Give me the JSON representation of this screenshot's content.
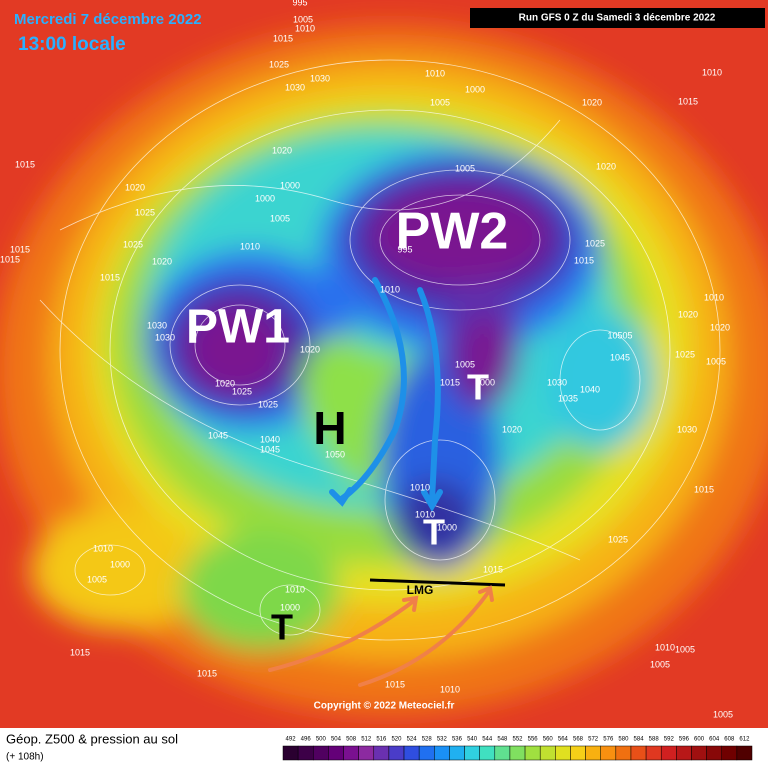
{
  "header": {
    "date": "Mercredi 7 décembre 2022",
    "time": "13:00 locale",
    "run": "Run GFS 0 Z du Samedi 3 décembre 2022"
  },
  "annotations": [
    "PW1",
    "PW2",
    "H",
    "T",
    "T",
    "T",
    "LMG"
  ],
  "isobar_labels": [
    "1015",
    "1020",
    "1025",
    "1025",
    "1015",
    "1015",
    "1015",
    "1020",
    "1030",
    "1030",
    "1020",
    "1025",
    "1025",
    "1040",
    "1045",
    "1045",
    "1050",
    "1020",
    "1010",
    "1005",
    "1000",
    "1000",
    "1020",
    "1025",
    "1030",
    "1030",
    "1015",
    "995",
    "1005",
    "1010",
    "1010",
    "1000",
    "1005",
    "1005",
    "995",
    "1010",
    "1005",
    "1000",
    "1015",
    "1020",
    "1010",
    "1010",
    "1000",
    "1015",
    "1025",
    "1030",
    "1035",
    "1040",
    "1045",
    "10505",
    "1025",
    "1015",
    "1020",
    "1020",
    "1010",
    "1015",
    "1010",
    "1020",
    "1020",
    "1025",
    "1005",
    "1030",
    "1015",
    "1010",
    "1005",
    "1000",
    "1010",
    "1000",
    "1015",
    "1015",
    "1015",
    "1010",
    "1005",
    "1005",
    "1010",
    "1005"
  ],
  "copyright": "Copyright © 2022 Meteociel.fr",
  "legend": {
    "title": "Géop. Z500 & pression au sol",
    "subtitle": "(+ 108h)",
    "scale": {
      "labels": [
        492,
        496,
        500,
        504,
        508,
        512,
        516,
        520,
        524,
        528,
        532,
        536,
        540,
        544,
        548,
        552,
        556,
        560,
        564,
        568,
        572,
        576,
        580,
        584,
        588,
        592,
        596,
        600,
        604,
        608,
        612
      ],
      "colors": [
        "#2a0030",
        "#3d0048",
        "#500060",
        "#640078",
        "#7a1090",
        "#8c2aa0",
        "#6a30b0",
        "#4a3cc8",
        "#2f4ee0",
        "#2070f0",
        "#1a90f5",
        "#20b0f0",
        "#30d0e0",
        "#40e0c0",
        "#60e090",
        "#80e060",
        "#a0e040",
        "#c0e030",
        "#e0e020",
        "#f5d018",
        "#f8b010",
        "#f89010",
        "#f07010",
        "#e85018",
        "#e03820",
        "#d02020",
        "#b81818",
        "#a01010",
        "#880808",
        "#700000",
        "#500000"
      ]
    }
  }
}
